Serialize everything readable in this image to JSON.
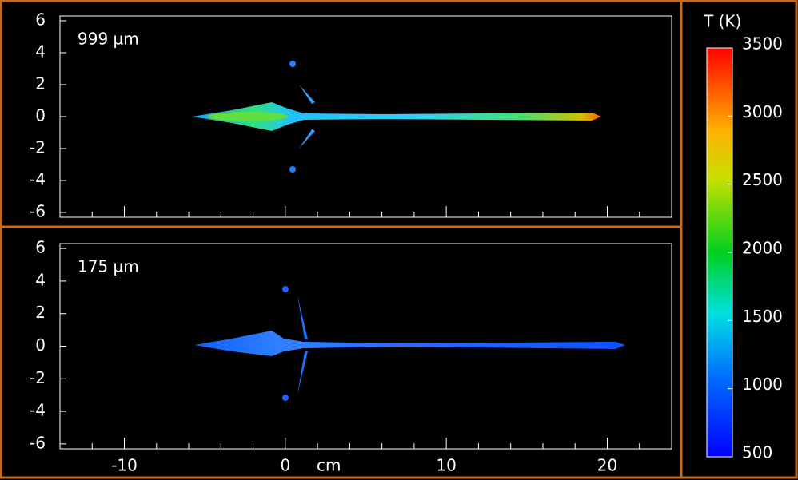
{
  "chart_data": [
    {
      "type": "heatmap",
      "annotation": "999 µm",
      "xlim": [
        -14,
        24
      ],
      "ylim": [
        -6.3,
        6.3
      ],
      "xticks": [
        -10,
        0,
        10,
        20
      ],
      "xminorticks": [
        -12,
        -8,
        -6,
        -4,
        -2,
        2,
        4,
        6,
        8,
        12,
        14,
        16,
        18,
        22
      ],
      "yticks": [
        6,
        4,
        2,
        0,
        -2,
        -4,
        -6
      ]
    },
    {
      "type": "heatmap",
      "annotation": "175 µm",
      "xlim": [
        -14,
        24
      ],
      "ylim": [
        -6.3,
        6.3
      ],
      "xticks": [
        -10,
        0,
        10,
        20
      ],
      "xminorticks": [
        -12,
        -8,
        -6,
        -4,
        -2,
        2,
        4,
        6,
        8,
        12,
        14,
        16,
        18,
        22
      ],
      "yticks": [
        6,
        4,
        2,
        0,
        -2,
        -4,
        -6
      ],
      "xlabel": "cm"
    }
  ],
  "colorbar": {
    "label": "T (K)",
    "clim": [
      500,
      3500
    ],
    "ticks": [
      500,
      1000,
      1500,
      2000,
      2500,
      3000,
      3500
    ]
  }
}
